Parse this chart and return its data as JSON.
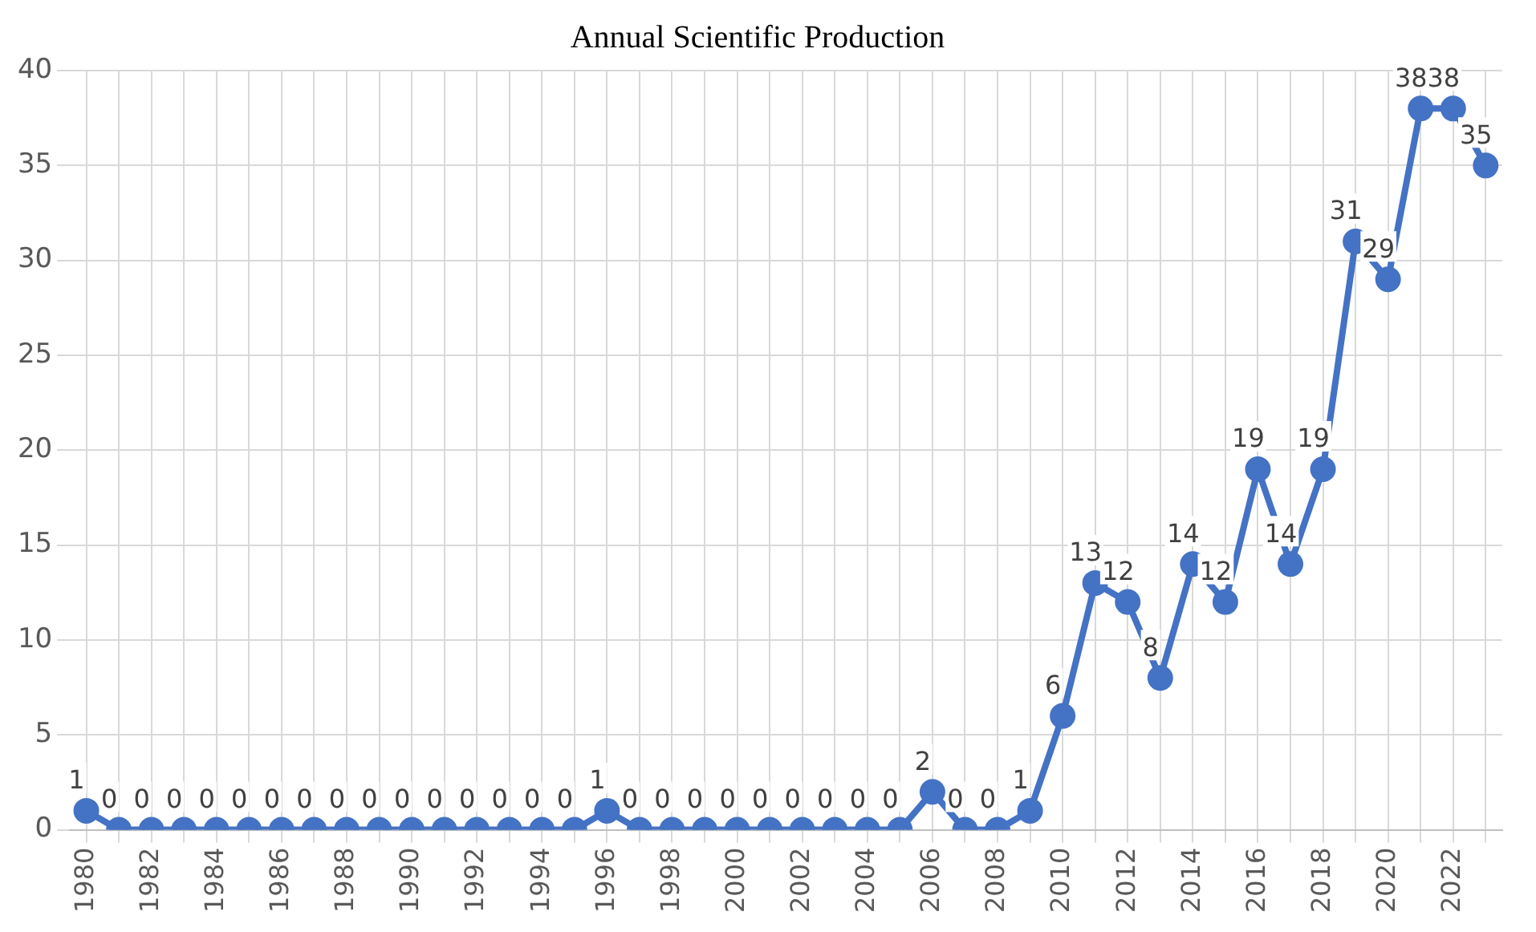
{
  "chart_data": {
    "type": "line",
    "title": "Annual Scientific Production",
    "categories": [
      "1980",
      null,
      "1982",
      null,
      "1984",
      null,
      "1986",
      null,
      "1988",
      null,
      "1990",
      null,
      "1992",
      null,
      "1994",
      null,
      "1996",
      null,
      "1998",
      null,
      "2000",
      null,
      "2002",
      null,
      "2004",
      null,
      "2006",
      null,
      "2008",
      null,
      "2010",
      null,
      "2012",
      null,
      "2014",
      null,
      "2016",
      null,
      "2018",
      null,
      "2020",
      null,
      "2022",
      null
    ],
    "series": [
      {
        "color": "#4472c4",
        "values": [
          1,
          0,
          0,
          0,
          0,
          0,
          0,
          0,
          0,
          0,
          0,
          0,
          0,
          0,
          0,
          0,
          1,
          0,
          0,
          0,
          0,
          0,
          0,
          0,
          0,
          0,
          2,
          0,
          0,
          1,
          6,
          13,
          12,
          8,
          14,
          12,
          19,
          14,
          19,
          31,
          29,
          38,
          38,
          35
        ]
      }
    ],
    "ylim": [
      0,
      40
    ],
    "yticks": [
      0,
      5,
      10,
      15,
      20,
      25,
      30,
      35,
      40
    ],
    "grid": true,
    "legend": false,
    "marker": "circle",
    "line_style": "solid",
    "data_labels": true
  }
}
